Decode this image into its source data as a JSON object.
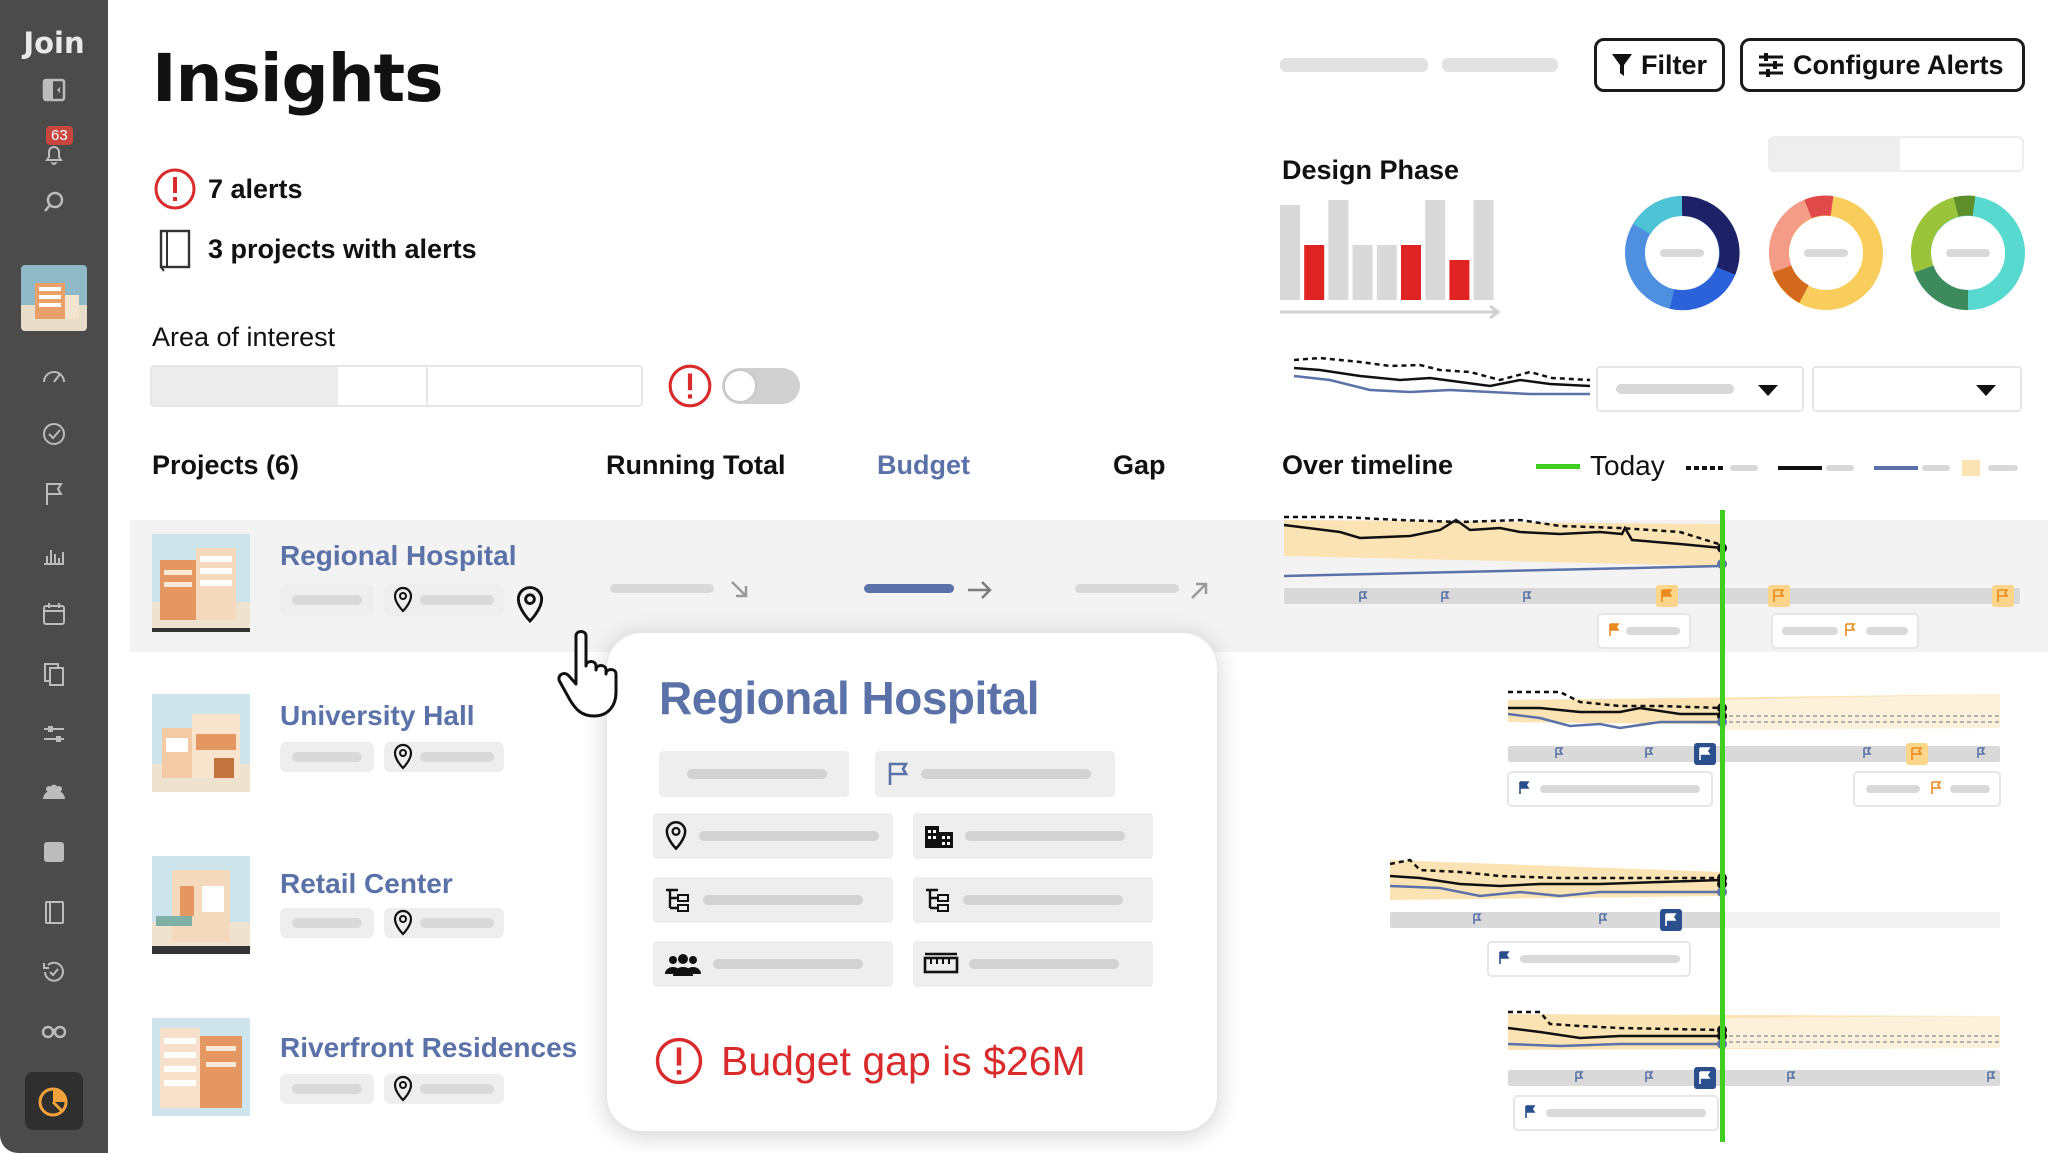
{
  "sidebar": {
    "brand": "Join",
    "notification_count": "63",
    "icons": [
      "collapse-sidebar-icon",
      "bell-icon",
      "search-icon",
      "gauge-icon",
      "check-circle-icon",
      "flag-icon",
      "bar-chart-icon",
      "calendar-icon",
      "documents-icon",
      "sliders-icon",
      "team-icon",
      "square-icon",
      "book-icon",
      "history-check-icon",
      "binoculars-icon",
      "insights-pie-icon"
    ]
  },
  "page": {
    "title": "Insights",
    "alerts_text": "7 alerts",
    "projects_with_alerts_text": "3 projects with alerts",
    "area_of_interest_label": "Area of interest"
  },
  "toolbar": {
    "filter_label": "Filter",
    "configure_alerts_label": "Configure Alerts"
  },
  "phase": {
    "label": "Design Phase",
    "bars": [
      {
        "value": 0.95,
        "color": "#d9d9d9"
      },
      {
        "value": 0.55,
        "color": "#e02424"
      },
      {
        "value": 1.0,
        "color": "#d9d9d9"
      },
      {
        "value": 0.55,
        "color": "#d9d9d9"
      },
      {
        "value": 0.55,
        "color": "#d9d9d9"
      },
      {
        "value": 0.55,
        "color": "#e02424"
      },
      {
        "value": 1.0,
        "color": "#d9d9d9"
      },
      {
        "value": 0.4,
        "color": "#e02424"
      },
      {
        "value": 1.0,
        "color": "#d9d9d9"
      }
    ]
  },
  "table": {
    "headers": {
      "projects": "Projects (6)",
      "running_total": "Running Total",
      "budget": "Budget",
      "gap": "Gap",
      "over_timeline": "Over timeline",
      "today": "Today"
    },
    "rows": [
      {
        "name": "Regional Hospital"
      },
      {
        "name": "University Hall"
      },
      {
        "name": "Retail Center"
      },
      {
        "name": "Riverfront Residences"
      }
    ]
  },
  "popup": {
    "title": "Regional Hospital",
    "alert_text": "Budget gap is $26M",
    "cells": [
      "location-pin-icon",
      "building-icon",
      "hierarchy-icon",
      "hierarchy-icon",
      "team-icon",
      "ruler-icon"
    ]
  },
  "colors": {
    "alert_red": "#d92b2b",
    "link_blue": "#5a72a8",
    "today_green": "#3fcf1f",
    "sidebar_bg": "#4a4b4a",
    "band_yellow": "#fbe3b4"
  }
}
